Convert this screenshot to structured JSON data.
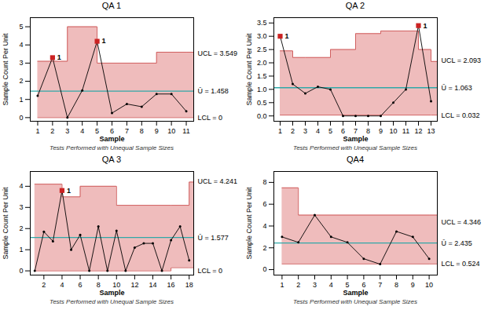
{
  "chart_data": [
    {
      "type": "line",
      "title": "QA 1",
      "xlabel": "Sample",
      "ylabel": "Sample Count Per Unit",
      "color": "#000000",
      "x": [
        1,
        2,
        3,
        4,
        5,
        6,
        7,
        8,
        9,
        10,
        11
      ],
      "values": [
        1.2,
        3.3,
        0.0,
        1.5,
        4.2,
        0.25,
        0.75,
        0.6,
        1.3,
        1.3,
        0.35
      ],
      "ucl": {
        "x": [
          1,
          3,
          5,
          9,
          11
        ],
        "values": [
          3.1,
          5.0,
          3.0,
          3.6,
          3.6
        ],
        "color": "#d06060"
      },
      "lcl": {
        "x": [
          1,
          11
        ],
        "values": [
          0.0,
          0.0
        ],
        "color": "#d06060"
      },
      "fill_color": "#e8a0a0",
      "center": {
        "value": 1.458,
        "color": "#30a8a8"
      },
      "out_points": {
        "x": [
          2,
          5
        ],
        "values": [
          3.3,
          4.2
        ],
        "labels": [
          "1",
          "1"
        ],
        "color": "#cc2222"
      },
      "limit_labels": [
        {
          "label": "UCL = 3.549",
          "value": 3.549
        },
        {
          "label": "Ū = 1.458",
          "value": 1.458
        },
        {
          "label": "LCL = 0",
          "value": 0
        }
      ],
      "footer": "Tests Performed with Unequal Sample Sizes",
      "xlim": [
        0.5,
        11.5
      ],
      "ylim": [
        -0.2,
        5.5
      ],
      "xticks": [
        1,
        2,
        3,
        4,
        5,
        6,
        7,
        8,
        9,
        10,
        11
      ],
      "yticks": [
        0,
        1,
        2,
        3,
        4,
        5
      ]
    },
    {
      "type": "line",
      "title": "QA 2",
      "xlabel": "Sample",
      "ylabel": "Sample Count Per Unit",
      "color": "#000000",
      "x": [
        1,
        2,
        3,
        4,
        5,
        6,
        7,
        8,
        9,
        10,
        11,
        12,
        13
      ],
      "values": [
        3.0,
        1.2,
        0.85,
        1.1,
        1.0,
        0.0,
        0.0,
        0.0,
        0.0,
        0.5,
        1.0,
        3.4,
        0.55
      ],
      "ucl": {
        "x": [
          1,
          2,
          3,
          5,
          7,
          9,
          12,
          13
        ],
        "values": [
          2.45,
          2.2,
          2.2,
          2.5,
          3.1,
          3.2,
          2.5,
          2.05
        ],
        "color": "#d06060"
      },
      "lcl": {
        "x": [
          1,
          13
        ],
        "values": [
          0.032,
          0.032
        ],
        "color": "#d06060"
      },
      "fill_color": "#e8a0a0",
      "center": {
        "value": 1.063,
        "color": "#30a8a8"
      },
      "out_points": {
        "x": [
          1,
          12
        ],
        "values": [
          3.0,
          3.4
        ],
        "labels": [
          "1",
          "1"
        ],
        "color": "#cc2222"
      },
      "limit_labels": [
        {
          "label": "UCL = 2.093",
          "value": 2.093
        },
        {
          "label": "Ū = 1.063",
          "value": 1.063
        },
        {
          "label": "LCL = 0.032",
          "value": 0.032
        }
      ],
      "footer": "Tests Performed with Unequal Sample Sizes",
      "xlim": [
        0.5,
        13.5
      ],
      "ylim": [
        -0.2,
        3.7
      ],
      "xticks": [
        1,
        2,
        3,
        4,
        5,
        6,
        7,
        8,
        9,
        10,
        11,
        12,
        13
      ],
      "yticks": [
        {
          "value": 0.0,
          "label": "0.0"
        },
        0.5,
        {
          "value": 1.0,
          "label": "1.0"
        },
        1.5,
        {
          "value": 2.0,
          "label": "2.0"
        },
        2.5,
        {
          "value": 3.0,
          "label": "3.0"
        },
        3.5
      ]
    },
    {
      "type": "line",
      "title": "QA 3",
      "xlabel": "Sample",
      "ylabel": "Sample Count Per Unit",
      "color": "#000000",
      "x": [
        1,
        2,
        3,
        4,
        5,
        6,
        7,
        8,
        9,
        10,
        11,
        12,
        13,
        14,
        15,
        16,
        17,
        18
      ],
      "values": [
        0.0,
        1.85,
        1.4,
        3.8,
        1.0,
        1.7,
        0.0,
        2.1,
        0.0,
        1.9,
        0.0,
        1.1,
        1.3,
        1.3,
        0.0,
        1.45,
        2.1,
        0.5
      ],
      "ucl": {
        "x": [
          1,
          4,
          6,
          10,
          16,
          18
        ],
        "values": [
          4.1,
          3.5,
          4.0,
          3.1,
          3.1,
          4.2
        ],
        "color": "#d06060"
      },
      "lcl": {
        "x": [
          1,
          16,
          18
        ],
        "values": [
          0.0,
          0.15,
          0.15
        ],
        "color": "#d06060"
      },
      "fill_color": "#e8a0a0",
      "center": {
        "value": 1.577,
        "color": "#30a8a8"
      },
      "out_points": {
        "x": [
          4
        ],
        "values": [
          3.8
        ],
        "labels": [
          "1"
        ],
        "color": "#cc2222"
      },
      "limit_labels": [
        {
          "label": "UCL = 4.241",
          "value": 4.241
        },
        {
          "label": "Ū = 1.577",
          "value": 1.577
        },
        {
          "label": "LCL = 0",
          "value": 0
        }
      ],
      "footer": "Tests Performed with Unequal Sample Sizes",
      "xlim": [
        0.5,
        18.5
      ],
      "ylim": [
        -0.2,
        4.7
      ],
      "xticks": [
        2,
        4,
        6,
        8,
        10,
        12,
        14,
        16,
        18
      ],
      "yticks": [
        0,
        1,
        2,
        3,
        4
      ]
    },
    {
      "type": "line",
      "title": "QA4",
      "xlabel": "Sample",
      "ylabel": "Sample Count Per Unit",
      "color": "#000000",
      "x": [
        1,
        2,
        3,
        4,
        5,
        6,
        7,
        8,
        9,
        10
      ],
      "values": [
        3.0,
        2.5,
        5.0,
        3.0,
        2.5,
        1.0,
        0.5,
        3.5,
        3.0,
        1.0
      ],
      "ucl": {
        "x": [
          1,
          2,
          3,
          10
        ],
        "values": [
          7.5,
          5.0,
          5.0,
          5.0
        ],
        "color": "#d06060"
      },
      "lcl": {
        "x": [
          1,
          10
        ],
        "values": [
          0.524,
          0.524
        ],
        "color": "#d06060"
      },
      "fill_color": "#e8a0a0",
      "center": {
        "value": 2.435,
        "color": "#30a8a8"
      },
      "out_points": {
        "x": [],
        "values": [],
        "labels": [],
        "color": "#cc2222"
      },
      "limit_labels": [
        {
          "label": "UCL = 4.346",
          "value": 4.346
        },
        {
          "label": "Ū = 2.435",
          "value": 2.435
        },
        {
          "label": "LCL = 0.524",
          "value": 0.524
        }
      ],
      "footer": "Tests Performed with Unequal Sample Sizes",
      "xlim": [
        0.5,
        10.5
      ],
      "ylim": [
        -0.5,
        9.0
      ],
      "xticks": [
        1,
        2,
        3,
        4,
        5,
        6,
        7,
        8,
        9,
        10
      ],
      "yticks": [
        0,
        2,
        4,
        6,
        8
      ]
    }
  ]
}
